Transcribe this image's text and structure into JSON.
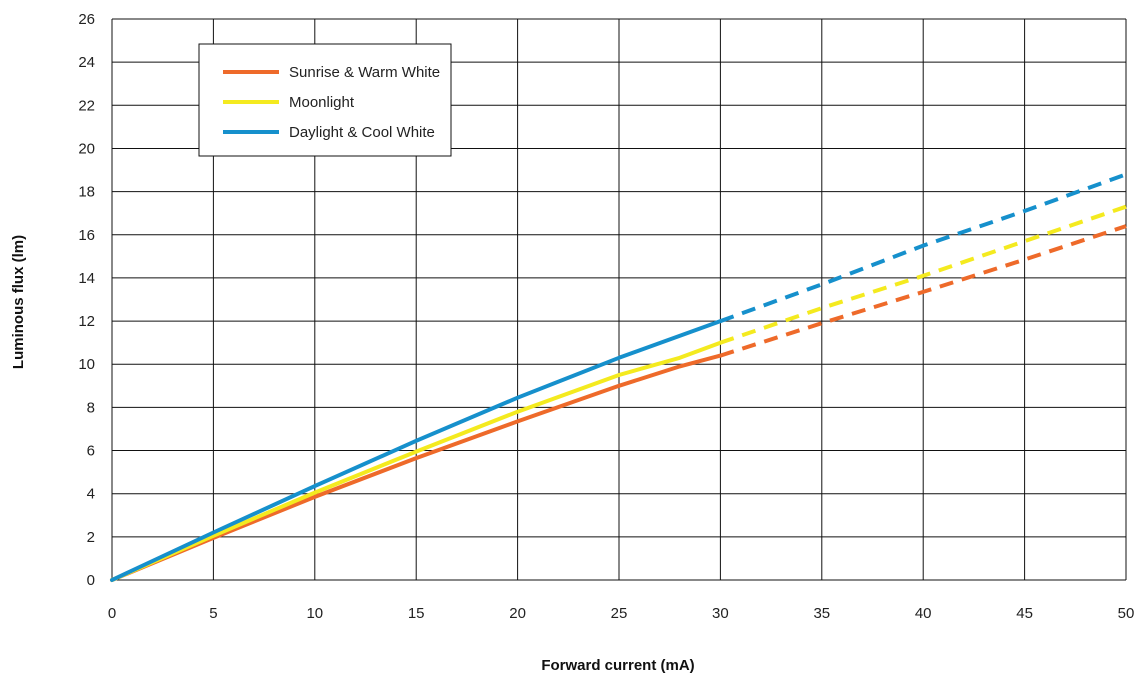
{
  "chart_data": {
    "type": "line",
    "title": "",
    "xlabel": "Forward current (mA)",
    "ylabel": "Luminous flux (lm)",
    "xlim": [
      0,
      50
    ],
    "ylim": [
      0,
      26
    ],
    "x_ticks": [
      0,
      5,
      10,
      15,
      20,
      25,
      30,
      35,
      40,
      45,
      50
    ],
    "y_ticks": [
      0,
      2,
      4,
      6,
      8,
      10,
      12,
      14,
      16,
      18,
      20,
      22,
      24,
      26
    ],
    "grid": true,
    "legend_position": "top-left",
    "series": [
      {
        "name": "Sunrise & Warm White",
        "color": "#ee6a2a",
        "solid": [
          [
            0,
            0
          ],
          [
            5,
            1.95
          ],
          [
            10,
            3.85
          ],
          [
            15,
            5.65
          ],
          [
            20,
            7.35
          ],
          [
            25,
            9.0
          ],
          [
            28,
            9.9
          ],
          [
            30,
            10.4
          ]
        ],
        "dashed": [
          [
            30,
            10.4
          ],
          [
            35,
            11.9
          ],
          [
            40,
            13.35
          ],
          [
            45,
            14.85
          ],
          [
            50,
            16.4
          ]
        ]
      },
      {
        "name": "Moonlight",
        "color": "#f4ea1f",
        "solid": [
          [
            0,
            0
          ],
          [
            5,
            2.05
          ],
          [
            10,
            4.05
          ],
          [
            15,
            5.95
          ],
          [
            20,
            7.8
          ],
          [
            25,
            9.5
          ],
          [
            28,
            10.3
          ],
          [
            30,
            11.0
          ]
        ],
        "dashed": [
          [
            30,
            11.0
          ],
          [
            35,
            12.6
          ],
          [
            40,
            14.1
          ],
          [
            45,
            15.7
          ],
          [
            50,
            17.3
          ]
        ]
      },
      {
        "name": "Daylight & Cool White",
        "color": "#1690cc",
        "solid": [
          [
            0,
            0
          ],
          [
            5,
            2.2
          ],
          [
            10,
            4.35
          ],
          [
            15,
            6.45
          ],
          [
            20,
            8.45
          ],
          [
            25,
            10.3
          ],
          [
            30,
            12.0
          ]
        ],
        "dashed": [
          [
            30,
            12.0
          ],
          [
            35,
            13.7
          ],
          [
            40,
            15.5
          ],
          [
            45,
            17.1
          ],
          [
            50,
            18.8
          ]
        ]
      }
    ]
  }
}
